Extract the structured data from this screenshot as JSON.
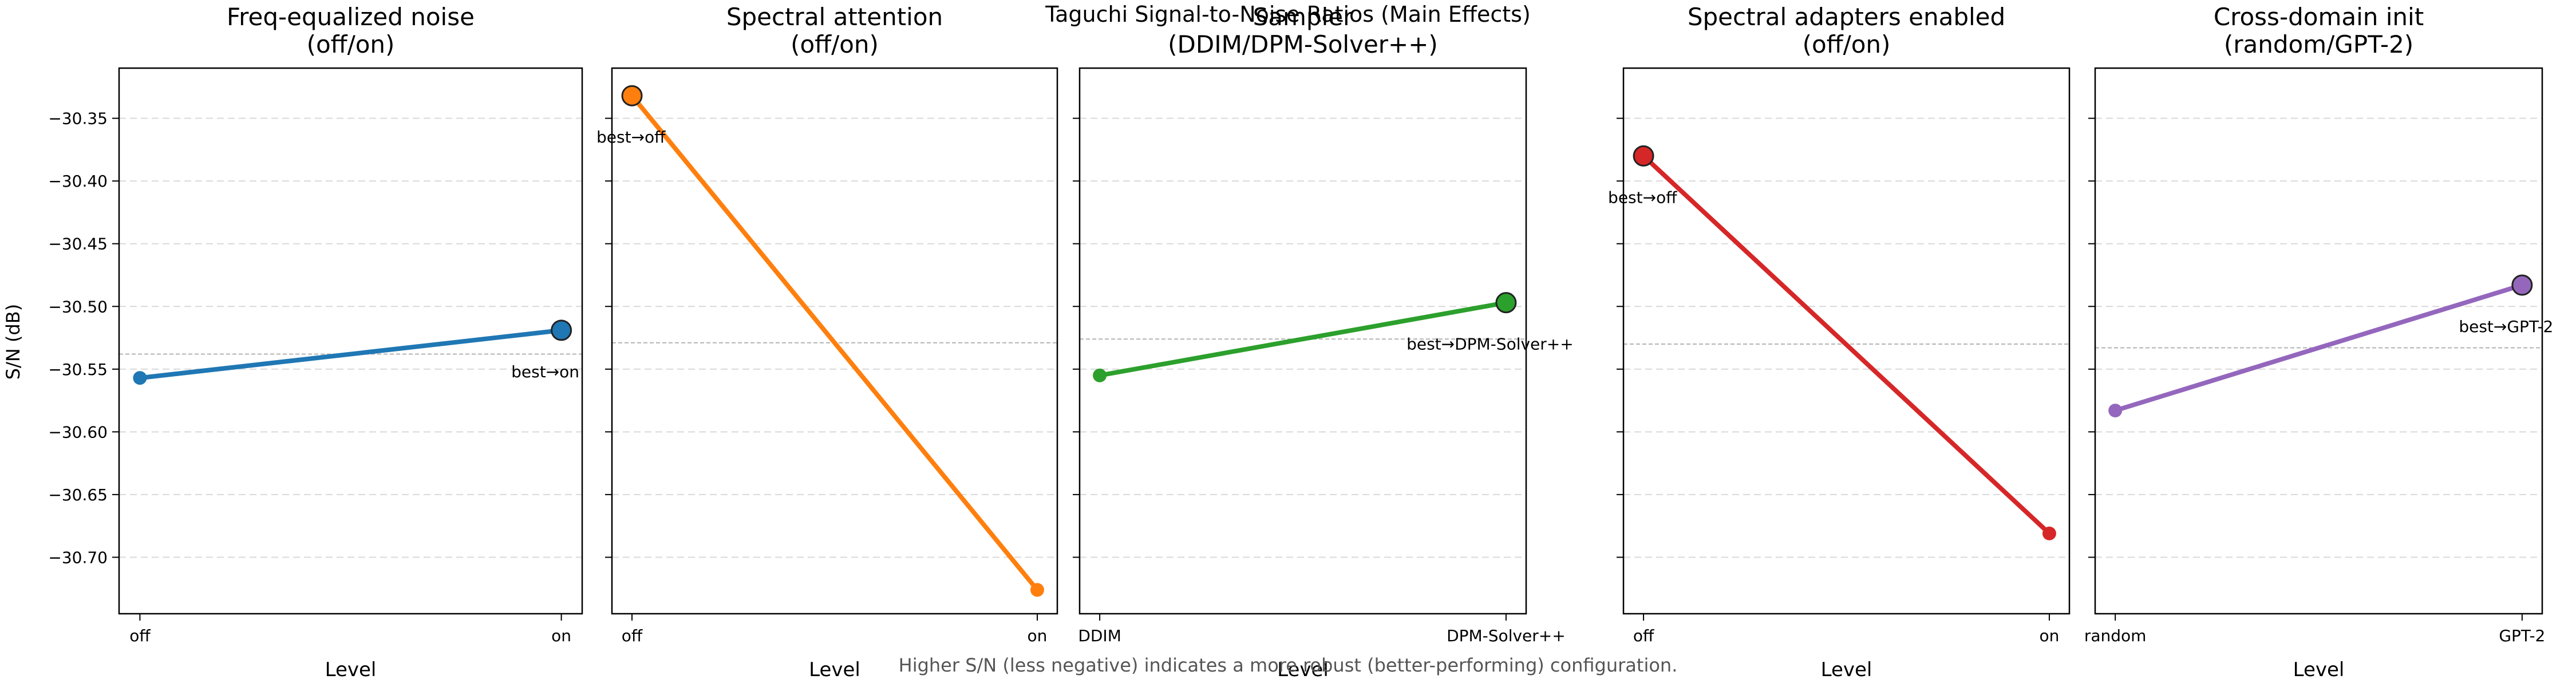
{
  "suptitle": "Taguchi Signal-to-Noise Ratios (Main Effects)",
  "footnote": "Higher S/N (less negative) indicates a more robust (better-performing) configuration.",
  "ylabel": "S/N (dB)",
  "colors": {
    "blue": "#1f77b4",
    "orange": "#ff7f0e",
    "green": "#2ca02c",
    "red": "#d62728",
    "purple": "#9467bd",
    "grid": "#d9d9d9",
    "mean_line": "#b3b3b3"
  },
  "chart_data": {
    "type": "line",
    "title": "Taguchi Signal-to-Noise Ratios (Main Effects)",
    "ylabel": "S/N (dB)",
    "xlabel": "Level",
    "ylim": [
      -30.745,
      -30.31
    ],
    "yticks": [
      -30.35,
      -30.4,
      -30.45,
      -30.5,
      -30.55,
      -30.6,
      -30.65,
      -30.7
    ],
    "grid": "y-dashed",
    "shared_y": true,
    "panels": [
      {
        "title_line1": "Freq-equalized noise",
        "title_line2": "(off/on)",
        "xlabel": "Level",
        "categories": [
          "off",
          "on"
        ],
        "values": [
          -30.557,
          -30.519
        ],
        "mean": -30.538,
        "best_index": 1,
        "best_label": "best→on",
        "color_key": "blue"
      },
      {
        "title_line1": "Spectral attention",
        "title_line2": "(off/on)",
        "xlabel": "Level",
        "categories": [
          "off",
          "on"
        ],
        "values": [
          -30.332,
          -30.726
        ],
        "mean": -30.529,
        "best_index": 0,
        "best_label": "best→off",
        "color_key": "orange"
      },
      {
        "title_line1": "Sampler",
        "title_line2": "(DDIM/DPM-Solver++)",
        "xlabel": "Level",
        "categories": [
          "DDIM",
          "DPM-Solver++"
        ],
        "values": [
          -30.555,
          -30.497
        ],
        "mean": -30.526,
        "best_index": 1,
        "best_label": "best→DPM-Solver++",
        "color_key": "green"
      },
      {
        "title_line1": "Spectral adapters enabled",
        "title_line2": "(off/on)",
        "xlabel": "Level",
        "categories": [
          "off",
          "on"
        ],
        "values": [
          -30.38,
          -30.681
        ],
        "mean": -30.53,
        "best_index": 0,
        "best_label": "best→off",
        "color_key": "red"
      },
      {
        "title_line1": "Cross-domain init",
        "title_line2": "(random/GPT-2)",
        "xlabel": "Level",
        "categories": [
          "random",
          "GPT-2"
        ],
        "values": [
          -30.583,
          -30.483
        ],
        "mean": -30.533,
        "best_index": 1,
        "best_label": "best→GPT-2",
        "color_key": "purple"
      }
    ]
  }
}
